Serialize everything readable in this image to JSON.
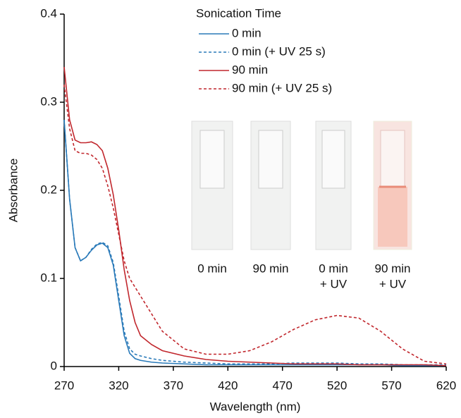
{
  "chart_data": {
    "type": "line",
    "x_label": "Wavelength (nm)",
    "y_label": "Absorbance",
    "legend_title": "Sonication Time",
    "legend": "top-center",
    "x": [
      270,
      275,
      280,
      285,
      290,
      295,
      300,
      305,
      310,
      315,
      320,
      325,
      330,
      335,
      340,
      350,
      360,
      380,
      400,
      420,
      440,
      460,
      480,
      500,
      520,
      540,
      560,
      580,
      600,
      620
    ],
    "series": [
      {
        "name": "0 min",
        "color": "#2a7ab9",
        "dash": false,
        "values": [
          0.28,
          0.19,
          0.135,
          0.12,
          0.124,
          0.132,
          0.138,
          0.14,
          0.135,
          0.115,
          0.075,
          0.035,
          0.015,
          0.009,
          0.007,
          0.005,
          0.004,
          0.003,
          0.002,
          0.002,
          0.002,
          0.002,
          0.002,
          0.002,
          0.002,
          0.002,
          0.002,
          0.001,
          0.001,
          0.001
        ]
      },
      {
        "name": "0 min (+ UV 25 s)",
        "color": "#2a7ab9",
        "dash": true,
        "values": [
          0.28,
          0.19,
          0.135,
          0.12,
          0.124,
          0.133,
          0.139,
          0.141,
          0.137,
          0.118,
          0.08,
          0.04,
          0.02,
          0.014,
          0.012,
          0.009,
          0.007,
          0.005,
          0.004,
          0.003,
          0.003,
          0.003,
          0.004,
          0.004,
          0.004,
          0.003,
          0.003,
          0.002,
          0.002,
          0.002
        ]
      },
      {
        "name": "90 min",
        "color": "#c1272d",
        "dash": false,
        "values": [
          0.34,
          0.28,
          0.257,
          0.254,
          0.254,
          0.255,
          0.252,
          0.245,
          0.225,
          0.195,
          0.155,
          0.11,
          0.075,
          0.05,
          0.035,
          0.025,
          0.018,
          0.012,
          0.008,
          0.006,
          0.005,
          0.004,
          0.003,
          0.003,
          0.003,
          0.002,
          0.002,
          0.002,
          0.002,
          0.001
        ]
      },
      {
        "name": "90 min (+ UV 25 s)",
        "color": "#c1272d",
        "dash": true,
        "values": [
          0.32,
          0.27,
          0.245,
          0.242,
          0.242,
          0.24,
          0.235,
          0.225,
          0.205,
          0.18,
          0.15,
          0.12,
          0.1,
          0.09,
          0.08,
          0.06,
          0.04,
          0.02,
          0.014,
          0.014,
          0.018,
          0.028,
          0.042,
          0.053,
          0.058,
          0.055,
          0.04,
          0.02,
          0.006,
          0.003
        ]
      }
    ],
    "xlim": [
      270,
      620
    ],
    "xticks": [
      270,
      320,
      370,
      420,
      470,
      520,
      570,
      620
    ],
    "ylim": [
      0,
      0.4
    ],
    "yticks": [
      0,
      0.1,
      0.2,
      0.3,
      0.4
    ],
    "inset_labels": [
      [
        "0 min"
      ],
      [
        "90 min"
      ],
      [
        "0 min",
        "+ UV"
      ],
      [
        "90 min",
        "+ UV"
      ]
    ]
  }
}
